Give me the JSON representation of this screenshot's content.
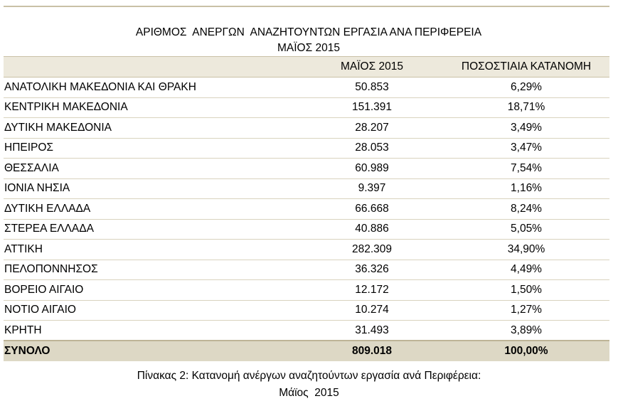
{
  "document": {
    "title_line1": "ΑΡΙΘΜΟΣ  ΑΝΕΡΓΩΝ  ΑΝΑΖΗΤΟΥΝΤΩΝ ΕΡΓΑΣΙΑ ΑΝΑ ΠΕΡΙΦΕΡΕΙΑ",
    "title_line2": "ΜΑΪΟΣ 2015",
    "caption_line1": "Πίνακας 2: Κατανομή ανέργων αναζητούντων εργασία ανά Περιφέρεια:",
    "caption_line2": "Μάϊος  2015"
  },
  "table": {
    "headers": {
      "region": "",
      "may": "ΜΑΪΟΣ 2015",
      "pct": "ΠΟΣΟΣΤΙΑΙΑ ΚΑΤΑΝΟΜΗ"
    },
    "rows": [
      {
        "region": "ΑΝΑΤΟΛΙΚΗ ΜΑΚΕΔΟΝΙΑ ΚΑΙ ΘΡΑΚΗ",
        "may": "50.853",
        "pct": "6,29%"
      },
      {
        "region": "ΚΕΝΤΡΙΚΗ ΜΑΚΕΔΟΝΙΑ",
        "may": "151.391",
        "pct": "18,71%"
      },
      {
        "region": "ΔΥΤΙΚΗ ΜΑΚΕΔΟΝΙΑ",
        "may": "28.207",
        "pct": "3,49%"
      },
      {
        "region": "ΗΠΕΙΡΟΣ",
        "may": "28.053",
        "pct": "3,47%"
      },
      {
        "region": "ΘΕΣΣΑΛΙΑ",
        "may": "60.989",
        "pct": "7,54%"
      },
      {
        "region": "ΙΟΝΙΑ ΝΗΣΙΑ",
        "may": "9.397",
        "pct": "1,16%"
      },
      {
        "region": "ΔΥΤΙΚΗ ΕΛΛΑΔΑ",
        "may": "66.668",
        "pct": "8,24%"
      },
      {
        "region": "ΣΤΕΡΕΑ ΕΛΛΑΔΑ",
        "may": "40.886",
        "pct": "5,05%"
      },
      {
        "region": "ΑΤΤΙΚΗ",
        "may": "282.309",
        "pct": "34,90%"
      },
      {
        "region": "ΠΕΛΟΠΟΝΝΗΣΟΣ",
        "may": "36.326",
        "pct": "4,49%"
      },
      {
        "region": "ΒΟΡΕΙΟ ΑΙΓΑΙΟ",
        "may": "12.172",
        "pct": "1,50%"
      },
      {
        "region": "ΝΟΤΙΟ ΑΙΓΑΙΟ",
        "may": "10.274",
        "pct": "1,27%"
      },
      {
        "region": "ΚΡΗΤΗ",
        "may": "31.493",
        "pct": "3,89%"
      }
    ],
    "total": {
      "region": "ΣΥΝΟΛΟ",
      "may": "809.018",
      "pct": "100,00%"
    }
  },
  "colors": {
    "header_band": "#ede9dc",
    "total_band": "#ddd8c5",
    "rule": "#c9c1a6"
  }
}
